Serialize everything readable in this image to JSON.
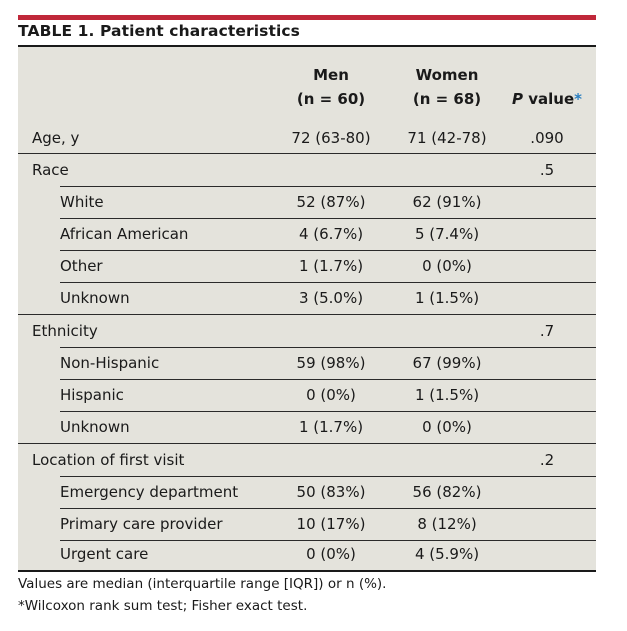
{
  "title": "TABLE 1. Patient characteristics",
  "columns": {
    "men_line1": "Men",
    "men_line2": "(n = 60)",
    "women_line1": "Women",
    "women_line2": "(n = 68)",
    "p_label_italic": "P",
    "p_label_rest": " value",
    "p_star": "*"
  },
  "rows": {
    "age": {
      "label": "Age, y",
      "men": "72 (63-80)",
      "women": "71 (42-78)",
      "p": ".090"
    },
    "race": {
      "label": "Race",
      "p": ".5"
    },
    "white": {
      "label": "White",
      "men": "52 (87%)",
      "women": "62 (91%)"
    },
    "african_american": {
      "label": "African American",
      "men": "4 (6.7%)",
      "women": "5 (7.4%)"
    },
    "other": {
      "label": "Other",
      "men": "1 (1.7%)",
      "women": "0 (0%)"
    },
    "race_unknown": {
      "label": "Unknown",
      "men": "3 (5.0%)",
      "women": "1 (1.5%)"
    },
    "ethnicity": {
      "label": "Ethnicity",
      "p": ".7"
    },
    "non_hispanic": {
      "label": "Non-Hispanic",
      "men": "59 (98%)",
      "women": "67 (99%)"
    },
    "hispanic": {
      "label": "Hispanic",
      "men": "0 (0%)",
      "women": "1 (1.5%)"
    },
    "eth_unknown": {
      "label": "Unknown",
      "men": "1 (1.7%)",
      "women": "0 (0%)"
    },
    "location": {
      "label": "Location of first visit",
      "p": ".2"
    },
    "emergency": {
      "label": "Emergency department",
      "men": "50 (83%)",
      "women": "56 (82%)"
    },
    "primary_care": {
      "label": "Primary care provider",
      "men": "10 (17%)",
      "women": "8 (12%)"
    },
    "urgent_care": {
      "label": "Urgent care",
      "men": "0 (0%)",
      "women": "4 (5.9%)"
    }
  },
  "footnotes": {
    "line1": "Values are median (interquartile range [IQR]) or n (%).",
    "line2": "*Wilcoxon rank sum test; Fisher exact test."
  },
  "colors": {
    "accent_bar": "#c0283a",
    "table_bg": "#e4e3dc",
    "star": "#2a7fc1"
  }
}
